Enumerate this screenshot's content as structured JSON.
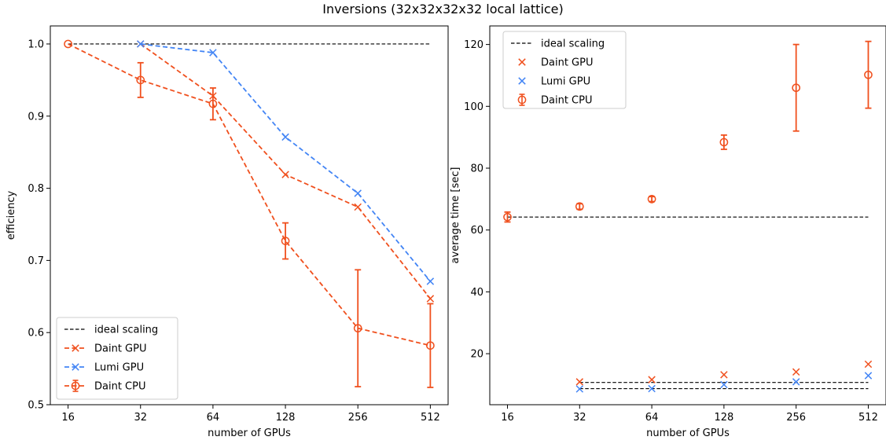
{
  "figure": {
    "title": "Inversions (32x32x32x32 local lattice)",
    "colors": {
      "daint": "#f0501e",
      "lumi": "#4385f5",
      "ideal": "#000000"
    }
  },
  "chart_data": [
    {
      "type": "line",
      "xlabel": "number of GPUs",
      "ylabel": "efficiency",
      "x_scale": "log2",
      "x_ticks": [
        16,
        32,
        64,
        128,
        256,
        512
      ],
      "x_tick_labels": [
        "16",
        "32",
        "64",
        "128",
        "256",
        "512"
      ],
      "xlim": [
        13.5,
        607
      ],
      "ylim": [
        0.5,
        1.025
      ],
      "y_ticks": [
        0.5,
        0.6,
        0.7,
        0.8,
        0.9,
        1.0
      ],
      "y_tick_labels": [
        "0.5",
        "0.6",
        "0.7",
        "0.8",
        "0.9",
        "1.0"
      ],
      "legend": {
        "position": "lower-left",
        "entries": [
          {
            "label": "ideal scaling",
            "series": "ideal"
          },
          {
            "label": "Daint GPU",
            "series": "daint_gpu"
          },
          {
            "label": "Lumi GPU",
            "series": "lumi_gpu"
          },
          {
            "label": "Daint CPU",
            "series": "daint_cpu"
          }
        ]
      },
      "series": [
        {
          "id": "ideal",
          "name": "ideal scaling",
          "style": "dashed",
          "marker": "none",
          "color": "#000000",
          "x": [
            16,
            512
          ],
          "y": [
            1.0,
            1.0
          ]
        },
        {
          "id": "daint_gpu",
          "name": "Daint GPU",
          "style": "dashed",
          "marker": "x",
          "color": "#f0501e",
          "x": [
            32,
            64,
            128,
            256,
            512
          ],
          "y": [
            1.0,
            0.928,
            0.819,
            0.774,
            0.647
          ]
        },
        {
          "id": "lumi_gpu",
          "name": "Lumi GPU",
          "style": "dashed",
          "marker": "x",
          "color": "#4385f5",
          "x": [
            32,
            64,
            128,
            256,
            512
          ],
          "y": [
            1.0,
            0.988,
            0.871,
            0.793,
            0.671
          ]
        },
        {
          "id": "daint_cpu",
          "name": "Daint CPU",
          "style": "dashed",
          "marker": "o",
          "color": "#f0501e",
          "x": [
            16,
            32,
            64,
            128,
            256,
            512
          ],
          "y": [
            1.0,
            0.95,
            0.917,
            0.727,
            0.606,
            0.582
          ],
          "yerr": [
            0,
            0.024,
            0.022,
            0.025,
            0.081,
            0.058
          ]
        }
      ]
    },
    {
      "type": "scatter",
      "xlabel": "number of GPUs",
      "ylabel": "average time [sec]",
      "x_scale": "log2",
      "x_ticks": [
        16,
        32,
        64,
        128,
        256,
        512
      ],
      "x_tick_labels": [
        "16",
        "32",
        "64",
        "128",
        "256",
        "512"
      ],
      "xlim": [
        13.5,
        607
      ],
      "ylim": [
        3.5,
        126
      ],
      "y_ticks": [
        20,
        40,
        60,
        80,
        100,
        120
      ],
      "y_tick_labels": [
        "20",
        "40",
        "60",
        "80",
        "100",
        "120"
      ],
      "legend": {
        "position": "upper-left",
        "entries": [
          {
            "label": "ideal scaling",
            "series": "ideal_cpu"
          },
          {
            "label": "Daint GPU",
            "series": "daint_gpu"
          },
          {
            "label": "Lumi GPU",
            "series": "lumi_gpu"
          },
          {
            "label": "Daint CPU",
            "series": "daint_cpu"
          }
        ]
      },
      "series": [
        {
          "id": "ideal_cpu",
          "name": "ideal scaling",
          "style": "dashed",
          "marker": "none",
          "color": "#000000",
          "x": [
            16,
            512
          ],
          "y": [
            64.2,
            64.2
          ]
        },
        {
          "id": "ideal_daint_gpu",
          "style": "dashed",
          "marker": "none",
          "color": "#000000",
          "x": [
            32,
            512
          ],
          "y": [
            10.7,
            10.7
          ]
        },
        {
          "id": "ideal_lumi_gpu",
          "style": "dashed",
          "marker": "none",
          "color": "#000000",
          "x": [
            32,
            512
          ],
          "y": [
            8.7,
            8.7
          ]
        },
        {
          "id": "daint_gpu",
          "name": "Daint GPU",
          "style": "none",
          "marker": "x",
          "color": "#f0501e",
          "x": [
            32,
            64,
            128,
            256,
            512
          ],
          "y": [
            10.9,
            11.6,
            13.2,
            14.1,
            16.6
          ]
        },
        {
          "id": "lumi_gpu",
          "name": "Lumi GPU",
          "style": "none",
          "marker": "x",
          "color": "#4385f5",
          "x": [
            32,
            64,
            128,
            256,
            512
          ],
          "y": [
            8.6,
            8.7,
            10.0,
            10.9,
            12.9
          ]
        },
        {
          "id": "daint_cpu",
          "name": "Daint CPU",
          "style": "none",
          "marker": "o",
          "color": "#f0501e",
          "x": [
            16,
            32,
            64,
            128,
            256,
            512
          ],
          "y": [
            64.2,
            67.6,
            70.0,
            88.4,
            106.0,
            110.2
          ],
          "yerr": [
            1.6,
            0.9,
            0.8,
            2.3,
            14.0,
            10.8
          ]
        }
      ]
    }
  ]
}
